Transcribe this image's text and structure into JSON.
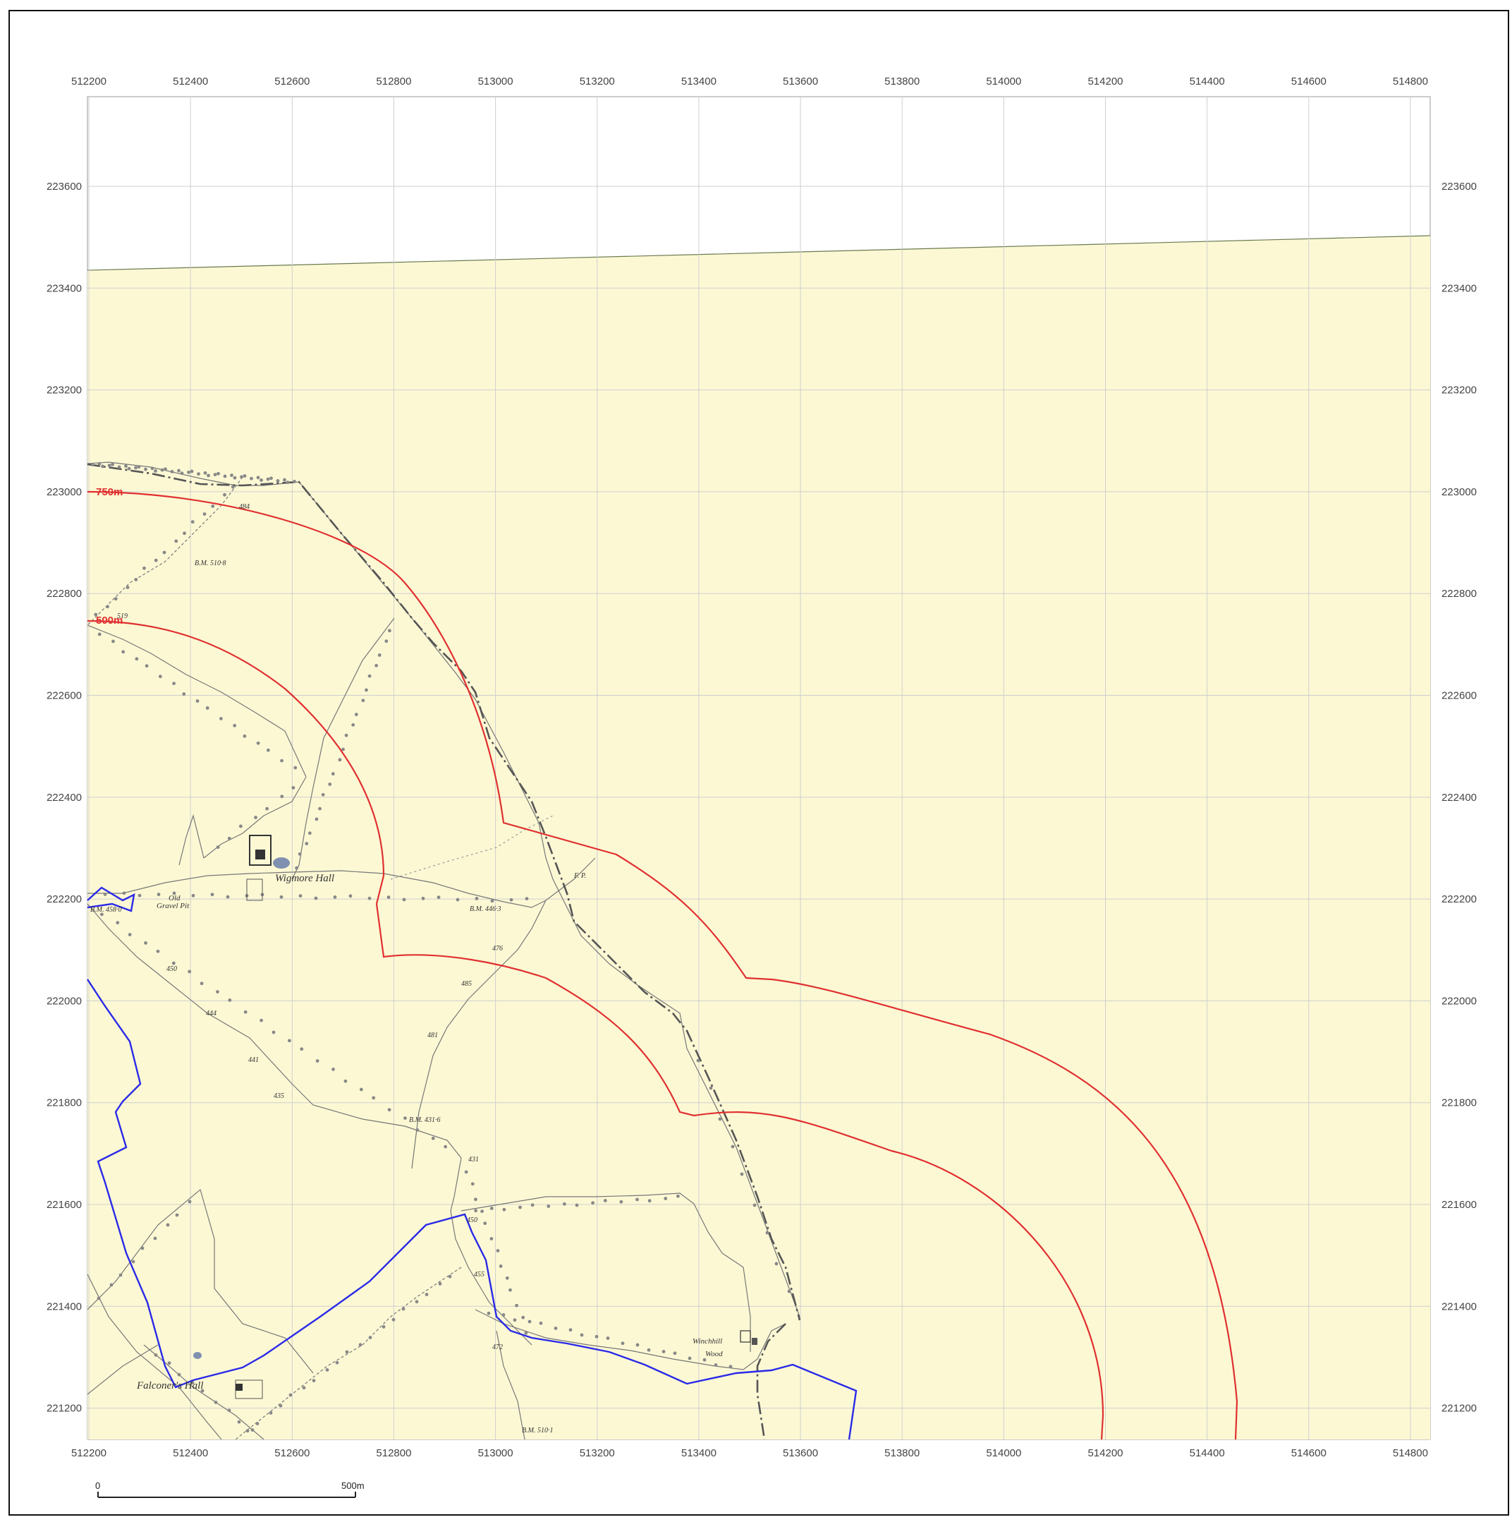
{
  "map": {
    "x_ticks": [
      "512200",
      "512400",
      "512600",
      "512800",
      "513000",
      "513200",
      "513400",
      "513600",
      "513800",
      "514000",
      "514200",
      "514400",
      "514600",
      "514800"
    ],
    "y_ticks": [
      "223600",
      "223400",
      "223200",
      "223000",
      "222800",
      "222600",
      "222400",
      "222200",
      "222000",
      "221800",
      "221600",
      "221400",
      "221200"
    ],
    "buffer_labels": {
      "outer": "750m",
      "inner": "500m"
    },
    "place_labels": {
      "wigmore_hall": "Wigmore Hall",
      "old_gravel_pit_1": "Old",
      "old_gravel_pit_2": "Gravel Pit",
      "winchhill_1": "Winchhill",
      "winchhill_2": "Wood",
      "falconers_hall": "Falconer's Hall",
      "fp": "F. P."
    },
    "spot_heights": [
      "484",
      "519",
      "450",
      "444",
      "441",
      "435",
      "431",
      "450",
      "455",
      "472",
      "476",
      "485",
      "481",
      "B.M. 510·8",
      "B.M. 458·0",
      "B.M. 446·3",
      "B.M. 431·6",
      "B.M. 510·1"
    ],
    "scale_bar": {
      "start": "0",
      "end": "500m"
    },
    "colors": {
      "map_fill": "#fcf8d4",
      "buffer": "#e03030",
      "boundary": "#2a2ae8",
      "grid": "#cccccc"
    }
  }
}
